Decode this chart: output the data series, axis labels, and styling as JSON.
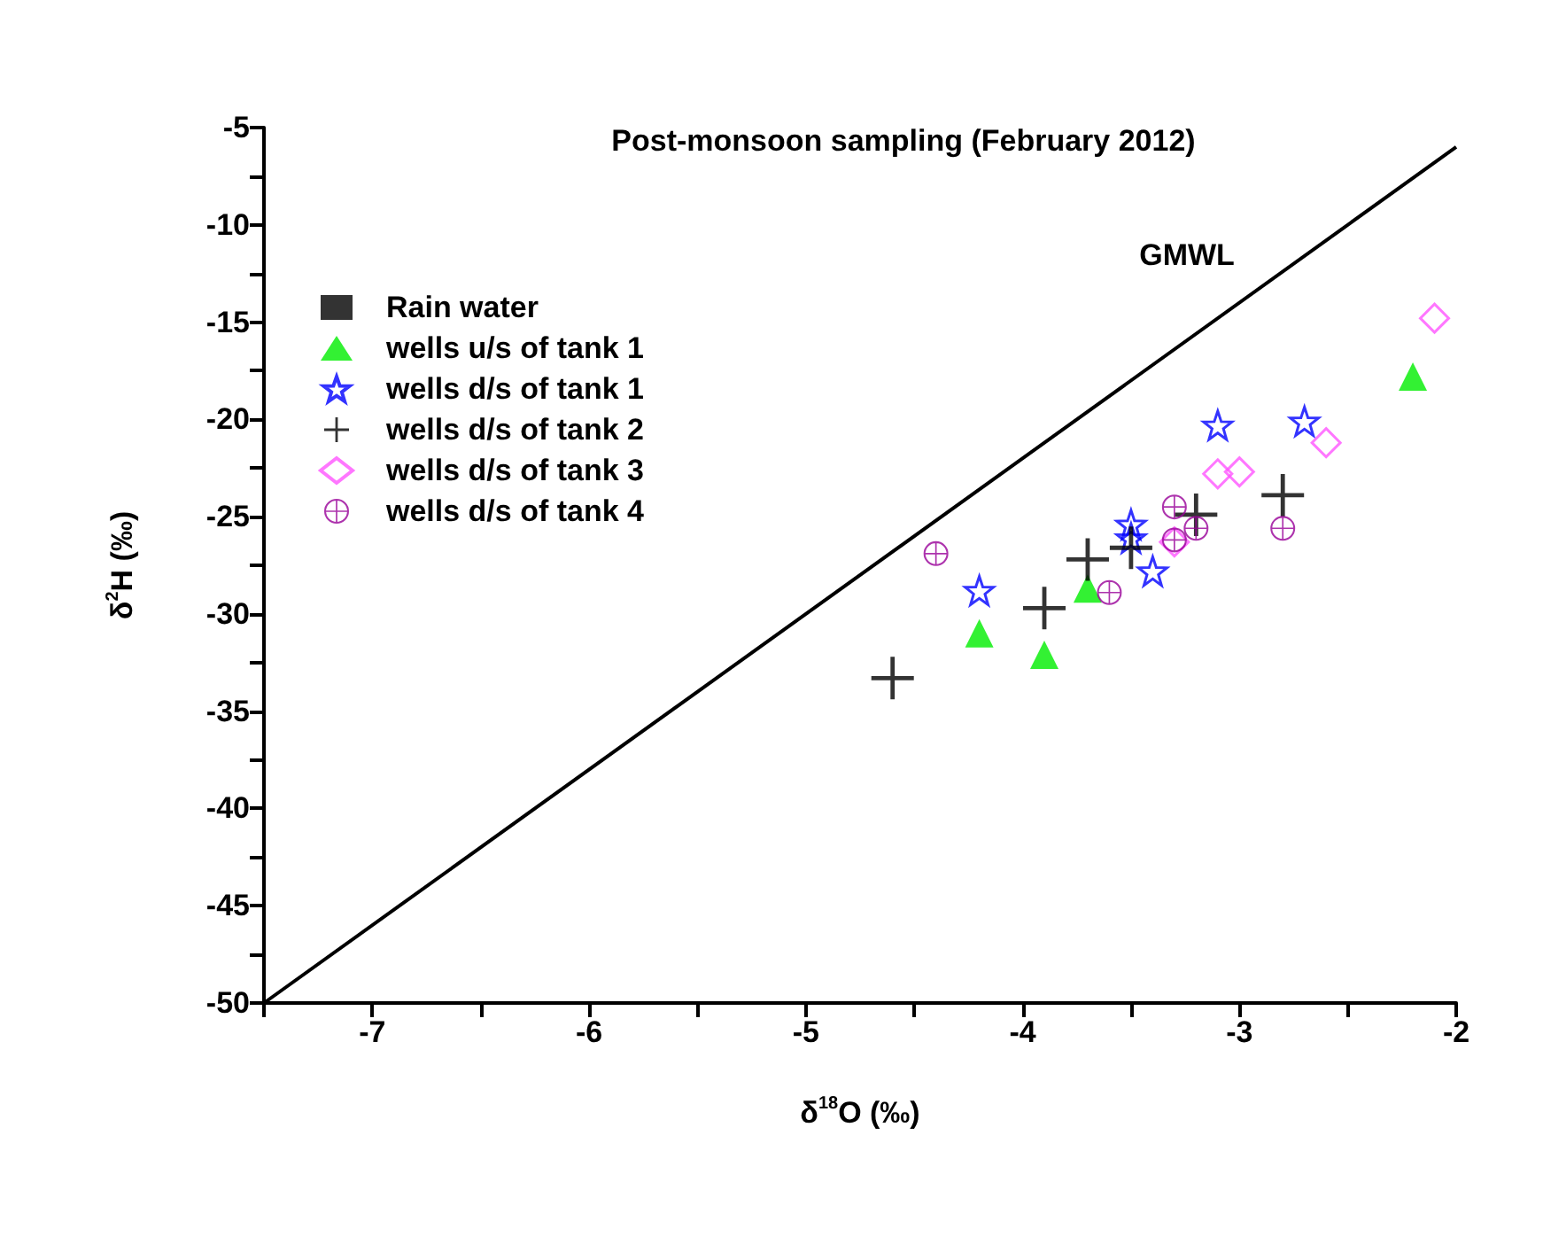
{
  "chart_data": {
    "type": "scatter",
    "title": "Post-monsoon sampling (February 2012)",
    "xlabel": "δ$^{18}$O (‰)",
    "ylabel": "δ$^{2}$H (‰)",
    "xlim": [
      -7.5,
      -2
    ],
    "xticks": [
      {
        "value": -7.5,
        "label": null
      },
      -7,
      {
        "value": -6.5,
        "label": null
      },
      -6,
      {
        "value": -5.5,
        "label": null
      },
      -5,
      {
        "value": -4.5,
        "label": null
      },
      -4,
      {
        "value": -3.5,
        "label": null
      },
      -3,
      {
        "value": -2.5,
        "label": null
      },
      -2
    ],
    "ylim": [
      -50,
      -5
    ],
    "yticks": [
      -50,
      {
        "value": -47.5,
        "label": null
      },
      -45,
      {
        "value": -42.5,
        "label": null
      },
      -40,
      {
        "value": -37.5,
        "label": null
      },
      -35,
      {
        "value": -32.5,
        "label": null
      },
      -30,
      {
        "value": -27.5,
        "label": null
      },
      -25,
      {
        "value": -22.5,
        "label": null
      },
      -20,
      {
        "value": -17.5,
        "label": null
      },
      -15,
      {
        "value": -12.5,
        "label": null
      },
      -10,
      {
        "value": -7.5,
        "label": null
      },
      -5
    ],
    "grid": false,
    "legend": "top left",
    "annotations": [
      "GMWL"
    ],
    "series": [
      {
        "name": "Rain water",
        "color": "#000000",
        "marker": "square"
      },
      {
        "name": "wells u/s of tank 1",
        "color": "#00ee00",
        "marker": "triangle",
        "x": [
          -4.2,
          -3.9,
          -3.7,
          -2.2
        ],
        "values": [
          -31.0,
          -32.1,
          -28.7,
          -17.8
        ]
      },
      {
        "name": "wells d/s of tank 1",
        "color": "#0000ff",
        "marker": "star",
        "x": [
          -4.2,
          -3.5,
          -3.5,
          -3.4,
          -3.1,
          -2.7
        ],
        "values": [
          -28.8,
          -25.4,
          -26.1,
          -27.8,
          -20.3,
          -20.1
        ]
      },
      {
        "name": "wells d/s of tank 2",
        "color": "#000000",
        "marker": "cross",
        "x": [
          -4.6,
          -3.9,
          -3.7,
          -3.5,
          -3.2,
          -2.8
        ],
        "values": [
          -33.3,
          -29.7,
          -27.2,
          -26.6,
          -24.9,
          -23.9
        ]
      },
      {
        "name": "wells d/s of tank 3",
        "color": "#ff55ff",
        "marker": "diamond",
        "x": [
          -2.1,
          -2.6,
          -3.1,
          -3.0,
          -3.3
        ],
        "values": [
          -14.8,
          -21.2,
          -22.8,
          -22.7,
          -26.3
        ]
      },
      {
        "name": "wells d/s of tank 4",
        "color": "#990099",
        "marker": "circle",
        "x": [
          -4.4,
          -3.6,
          -3.3,
          -3.3,
          -3.2,
          -2.8
        ],
        "values": [
          -26.9,
          -28.9,
          -24.5,
          -26.2,
          -25.6,
          -25.6
        ]
      },
      {
        "type": "line",
        "color": "#000000",
        "line_style": "solid",
        "marker": "none",
        "x": [
          -7.5,
          -2
        ],
        "values": [
          -50,
          -6
        ]
      }
    ]
  }
}
